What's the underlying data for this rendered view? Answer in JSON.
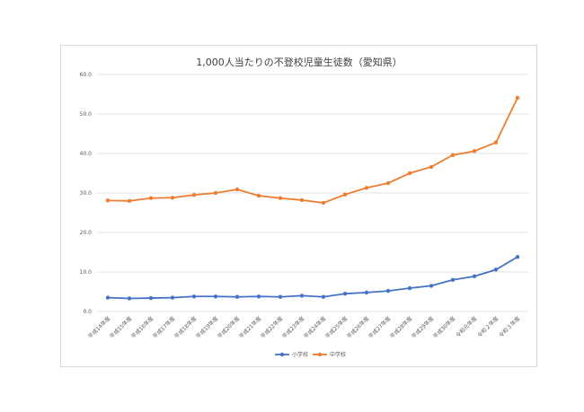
{
  "chart_data": {
    "type": "line",
    "title": "1,000人当たりの不登校児童生徒数（愛知県）",
    "categories": [
      "平成14年度",
      "平成15年度",
      "平成16年度",
      "平成17年度",
      "平成18年度",
      "平成19年度",
      "平成20年度",
      "平成21年度",
      "平成22年度",
      "平成23年度",
      "平成24年度",
      "平成25年度",
      "平成26年度",
      "平成27年度",
      "平成28年度",
      "平成29年度",
      "平成30年度",
      "令和元年度",
      "令和２年度",
      "令和３年度"
    ],
    "series": [
      {
        "name": "小学校",
        "color": "#4472c4",
        "values": [
          3.5,
          3.3,
          3.4,
          3.5,
          3.8,
          3.8,
          3.7,
          3.8,
          3.7,
          4.0,
          3.7,
          4.5,
          4.8,
          5.2,
          5.9,
          6.5,
          8.0,
          8.9,
          10.6,
          13.8
        ]
      },
      {
        "name": "中学校",
        "color": "#ed7d31",
        "values": [
          28.1,
          28.0,
          28.7,
          28.8,
          29.5,
          30.0,
          30.9,
          29.3,
          28.7,
          28.2,
          27.5,
          29.6,
          31.3,
          32.5,
          35.0,
          36.6,
          39.6,
          40.6,
          42.8,
          54.1
        ]
      }
    ],
    "ylim": [
      0,
      60
    ],
    "yticks": [
      "0.0",
      "10.0",
      "20.0",
      "30.0",
      "40.0",
      "50.0",
      "60.0"
    ],
    "grid": true,
    "legend_position": "bottom"
  }
}
